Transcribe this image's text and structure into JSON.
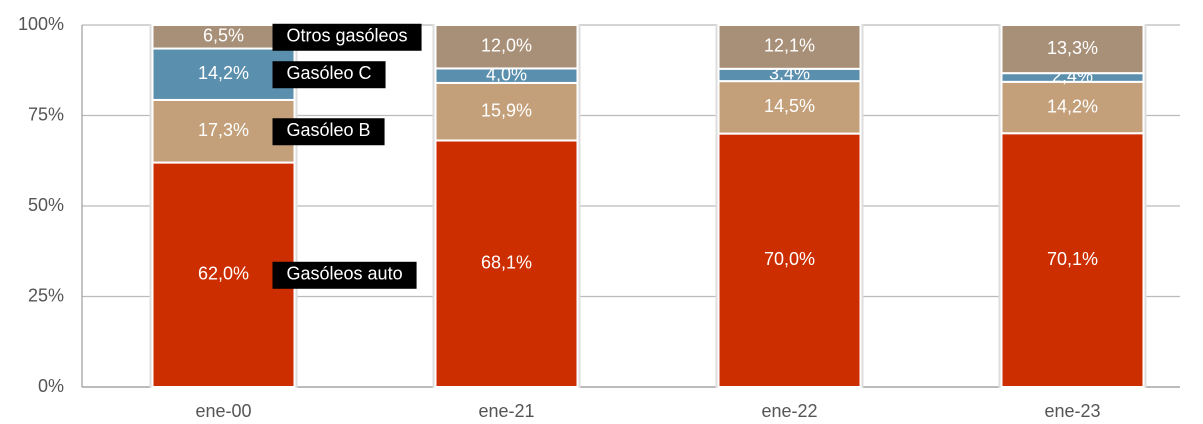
{
  "chart_data": {
    "type": "stacked_bar",
    "categories": [
      "ene-00",
      "ene-21",
      "ene-22",
      "ene-23"
    ],
    "series": [
      {
        "name": "Gasóleos auto",
        "color": "#cc2e00",
        "values": [
          62.0,
          68.1,
          70.0,
          70.1
        ],
        "value_labels": [
          "62,0%",
          "68,1%",
          "70,0%",
          "70,1%"
        ]
      },
      {
        "name": "Gasóleo B",
        "color": "#c4a07a",
        "values": [
          17.3,
          15.9,
          14.5,
          14.2
        ],
        "value_labels": [
          "17,3%",
          "15,9%",
          "14,5%",
          "14,2%"
        ]
      },
      {
        "name": "Gasóleo C",
        "color": "#5b8fae",
        "values": [
          14.2,
          4.0,
          3.4,
          2.4
        ],
        "value_labels": [
          "14,2%",
          "4,0%",
          "3,4%",
          "2,4%"
        ]
      },
      {
        "name": "Otros gasóleos",
        "color": "#a89078",
        "values": [
          6.5,
          12.0,
          12.1,
          13.3
        ],
        "value_labels": [
          "6,5%",
          "12,0%",
          "12,1%",
          "13,3%"
        ]
      }
    ],
    "ylim": [
      0,
      100
    ],
    "yticks": [
      {
        "value": 0,
        "label": "0%"
      },
      {
        "value": 25,
        "label": "25%"
      },
      {
        "value": 50,
        "label": "50%"
      },
      {
        "value": 75,
        "label": "75%"
      },
      {
        "value": 100,
        "label": "100%"
      }
    ],
    "grid": true
  }
}
